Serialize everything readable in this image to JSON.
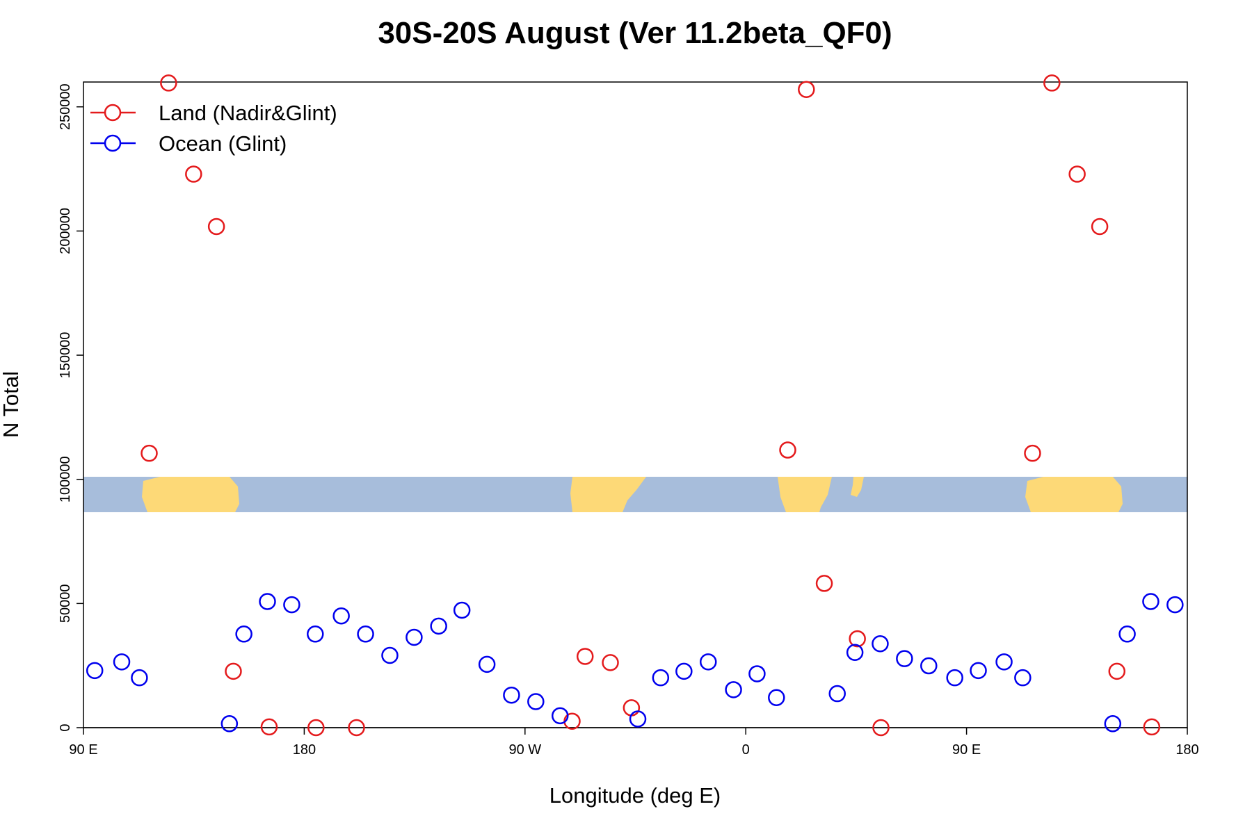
{
  "chart_data": {
    "type": "scatter",
    "title": "30S-20S August (Ver 11.2beta_QF0)",
    "x_label": "Longitude (deg E)",
    "y_label": "N Total",
    "xlim": [
      90,
      540
    ],
    "xticks": [
      {
        "value": 90,
        "label": "90 E"
      },
      180,
      {
        "value": 270,
        "label": "90 W"
      },
      {
        "value": 360,
        "label": "0"
      },
      {
        "value": 450,
        "label": "90 E"
      },
      {
        "value": 540,
        "label": "180"
      }
    ],
    "ylim": [
      0,
      260000
    ],
    "yticks": [
      0,
      50000,
      100000,
      150000,
      200000,
      250000
    ],
    "legend": "top-left",
    "series": [
      {
        "name": "Land (Nadir&Glint)",
        "color": "#e41a1c",
        "x": [
          124.7,
          116.8,
          134.9,
          144.2,
          151.1,
          165.7,
          184.8,
          201.3,
          289.2,
          294.5,
          304.8,
          313.4,
          377.1,
          384.7,
          392.0,
          405.5,
          415.1,
          476.9,
          484.8,
          495.1,
          504.3,
          511.3,
          525.5
        ],
        "values": [
          259600,
          110500,
          222900,
          201800,
          22700,
          300,
          0,
          0,
          2600,
          28700,
          26200,
          8000,
          111800,
          257000,
          58100,
          35800,
          0,
          110500,
          259600,
          222900,
          201800,
          22700,
          300
        ]
      },
      {
        "name": "Ocean (Glint)",
        "color": "#0000ee",
        "x": [
          94.6,
          105.6,
          112.8,
          149.5,
          155.4,
          165.0,
          174.9,
          184.5,
          195.1,
          205.0,
          214.9,
          224.8,
          234.8,
          244.3,
          254.5,
          264.5,
          274.4,
          284.3,
          316.0,
          325.3,
          334.8,
          344.7,
          355.0,
          364.6,
          372.5,
          397.3,
          404.5,
          414.8,
          424.7,
          434.6,
          445.2,
          454.8,
          465.3,
          472.9,
          509.6,
          515.5,
          525.1,
          535.0
        ],
        "values": [
          23000,
          26500,
          20100,
          1600,
          37700,
          50800,
          49500,
          37700,
          45000,
          37700,
          29100,
          36400,
          40900,
          47300,
          25500,
          13100,
          10500,
          4800,
          3500,
          20100,
          22700,
          26500,
          15300,
          21700,
          12100,
          13700,
          30300,
          33800,
          27800,
          24900,
          20100,
          23000,
          26500,
          20100,
          1600,
          37700,
          50800,
          49500
        ]
      }
    ]
  }
}
